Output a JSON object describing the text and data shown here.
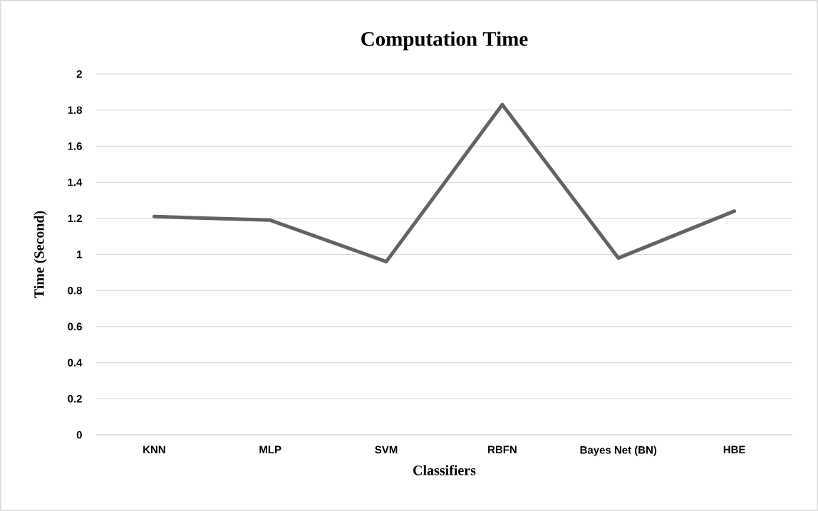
{
  "chart_data": {
    "type": "line",
    "title": "Computation Time",
    "xlabel": "Classifiers",
    "ylabel": "Time (Second)",
    "categories": [
      "KNN",
      "MLP",
      "SVM",
      "RBFN",
      "Bayes Net (BN)",
      "HBE"
    ],
    "values": [
      1.21,
      1.19,
      0.96,
      1.83,
      0.98,
      1.24
    ],
    "color": "#636363",
    "ylim": [
      0,
      2
    ],
    "yticks": [
      0,
      0.2,
      0.4,
      0.6,
      0.8,
      1,
      1.2,
      1.4,
      1.6,
      1.8,
      2
    ],
    "grid": "y"
  }
}
